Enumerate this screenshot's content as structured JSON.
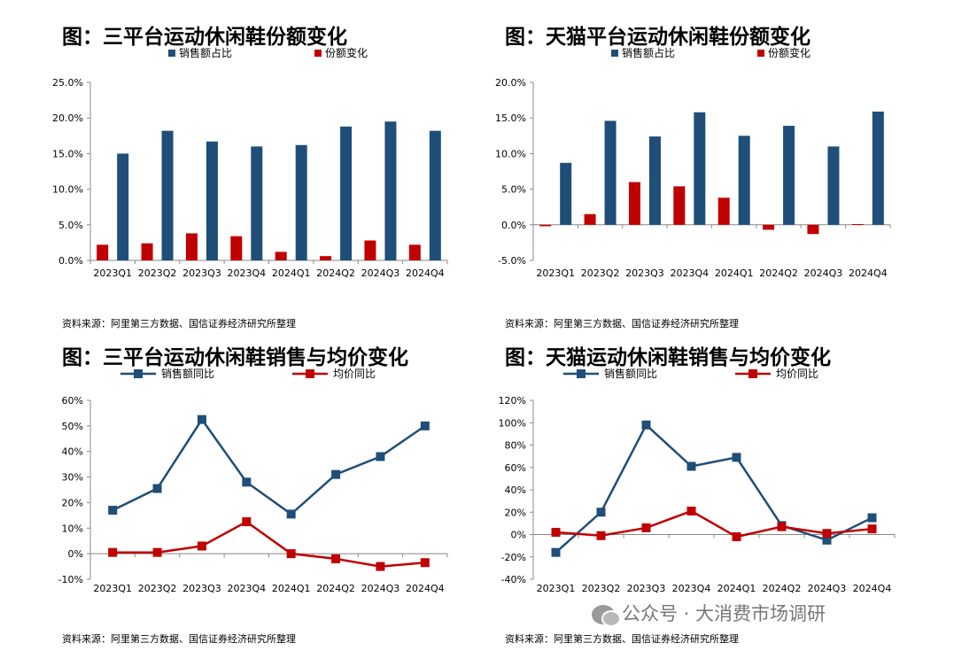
{
  "panels": [
    {
      "title": "图：三平台运动休闲鞋份额变化",
      "source": "资料来源：阿里第三方数据、国信证券经济研究所整理"
    },
    {
      "title": "图：天猫平台运动休闲鞋份额变化",
      "source": "资料来源：阿里第三方数据、国信证券经济研究所整理"
    },
    {
      "title": "图：三平台运动休闲鞋销售与均价变化",
      "source": "资料来源：阿里第三方数据、国信证券经济研究所整理"
    },
    {
      "title": "图：天猫运动休闲鞋销售与均价变化",
      "source": "资料来源：阿里第三方数据、国信证券经济研究所整理"
    }
  ],
  "watermark": "公众号 · 大消费市场调研",
  "colors": {
    "blue": "#1f4e79",
    "red": "#c00000"
  },
  "chart_data": [
    {
      "type": "bar",
      "categories": [
        "2023Q1",
        "2023Q2",
        "2023Q3",
        "2023Q4",
        "2024Q1",
        "2024Q2",
        "2024Q3",
        "2024Q4"
      ],
      "series": [
        {
          "name": "销售额占比",
          "values": [
            15.0,
            18.2,
            16.7,
            16.0,
            16.2,
            18.8,
            19.5,
            18.2
          ]
        },
        {
          "name": "份额变化",
          "values": [
            2.2,
            2.4,
            3.8,
            3.4,
            1.2,
            0.6,
            2.8,
            2.2
          ]
        }
      ],
      "ylim": [
        0,
        25
      ],
      "yticks": [
        0,
        5,
        10,
        15,
        20,
        25
      ],
      "ytick_labels": [
        "0.0%",
        "5.0%",
        "10.0%",
        "15.0%",
        "20.0%",
        "25.0%"
      ],
      "legend": "top"
    },
    {
      "type": "bar",
      "categories": [
        "2023Q1",
        "2023Q2",
        "2023Q3",
        "2023Q4",
        "2024Q1",
        "2024Q2",
        "2024Q3",
        "2024Q4"
      ],
      "series": [
        {
          "name": "销售额占比",
          "values": [
            8.7,
            14.6,
            12.4,
            15.8,
            12.5,
            13.9,
            11.0,
            15.9
          ]
        },
        {
          "name": "份额变化",
          "values": [
            -0.2,
            1.5,
            6.0,
            5.4,
            3.8,
            -0.7,
            -1.3,
            0.1
          ]
        }
      ],
      "ylim": [
        -5,
        20
      ],
      "yticks": [
        -5,
        0,
        5,
        10,
        15,
        20
      ],
      "ytick_labels": [
        "-5.0%",
        "0.0%",
        "5.0%",
        "10.0%",
        "15.0%",
        "20.0%"
      ],
      "legend": "top"
    },
    {
      "type": "line",
      "categories": [
        "2023Q1",
        "2023Q2",
        "2023Q3",
        "2023Q4",
        "2024Q1",
        "2024Q2",
        "2024Q3",
        "2024Q4"
      ],
      "series": [
        {
          "name": "销售额同比",
          "values": [
            17,
            25.5,
            52.5,
            28,
            15.5,
            31,
            38,
            50
          ]
        },
        {
          "name": "均价同比",
          "values": [
            0.5,
            0.5,
            3,
            12.5,
            0,
            -2,
            -5,
            -3.5
          ]
        }
      ],
      "ylim": [
        -10,
        60
      ],
      "yticks": [
        -10,
        0,
        10,
        20,
        30,
        40,
        50,
        60
      ],
      "ytick_labels": [
        "-10%",
        "0%",
        "10%",
        "20%",
        "30%",
        "40%",
        "50%",
        "60%"
      ],
      "legend": "top"
    },
    {
      "type": "line",
      "categories": [
        "2023Q1",
        "2023Q2",
        "2023Q3",
        "2023Q4",
        "2024Q1",
        "2024Q2",
        "2024Q3",
        "2024Q4"
      ],
      "series": [
        {
          "name": "销售额同比",
          "values": [
            -16,
            20,
            98,
            61,
            69,
            8,
            -5,
            15
          ]
        },
        {
          "name": "均价同比",
          "values": [
            2,
            -1,
            6,
            21,
            -2,
            7,
            1,
            5
          ]
        }
      ],
      "ylim": [
        -40,
        120
      ],
      "yticks": [
        -40,
        -20,
        0,
        20,
        40,
        60,
        80,
        100,
        120
      ],
      "ytick_labels": [
        "-40%",
        "-20%",
        "0%",
        "20%",
        "40%",
        "60%",
        "80%",
        "100%",
        "120%"
      ],
      "legend": "top"
    }
  ]
}
